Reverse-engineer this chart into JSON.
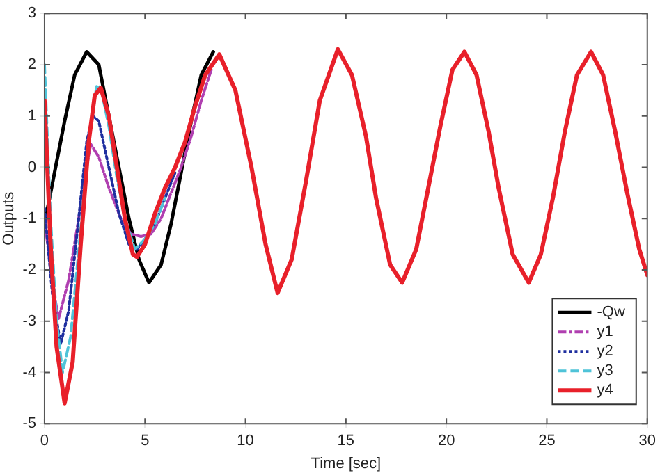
{
  "chart_data": {
    "type": "line",
    "xlabel": "Time [sec]",
    "ylabel": "Outputs",
    "xlim": [
      0,
      30
    ],
    "ylim": [
      -5,
      3
    ],
    "xticks": [
      0,
      5,
      10,
      15,
      20,
      25,
      30
    ],
    "yticks": [
      -5,
      -4,
      -3,
      -2,
      -1,
      0,
      1,
      2,
      3
    ],
    "grid": false,
    "legend": "bottom right",
    "marker": "none",
    "series": [
      {
        "name": "-Qw",
        "color": "#000000",
        "line_style": "solid",
        "x": [
          0,
          0.5,
          1,
          1.5,
          2.1,
          2.7,
          3.2,
          3.7,
          4.2,
          4.7,
          5.2,
          5.8,
          6.3,
          6.8,
          7.3,
          7.8,
          8.4
        ],
        "values": [
          -1.1,
          -0.1,
          0.9,
          1.8,
          2.25,
          2,
          1,
          0,
          -1,
          -1.8,
          -2.25,
          -1.9,
          -1.1,
          -0.1,
          0.9,
          1.8,
          2.25
        ]
      },
      {
        "name": "y1",
        "color": "#b03fb0",
        "line_style": "dashdot",
        "x": [
          0,
          0.4,
          0.7,
          1.2,
          1.7,
          2,
          2.3,
          2.7,
          3.2,
          3.8,
          4.3,
          4.8,
          5.3,
          5.8,
          6.3,
          6.8,
          7.3,
          7.8,
          8.3
        ],
        "values": [
          -1,
          -2.3,
          -2.95,
          -2.2,
          -1,
          -0.2,
          0.45,
          0.2,
          -0.4,
          -1,
          -1.3,
          -1.35,
          -1.3,
          -1,
          -0.5,
          0,
          0.6,
          1.3,
          1.9
        ]
      },
      {
        "name": "y2",
        "color": "#1f2f9f",
        "line_style": "dotted",
        "x": [
          0,
          0.4,
          0.8,
          1.2,
          1.7,
          2.1,
          2.4,
          2.7,
          3.2,
          3.7,
          4.2,
          4.6,
          5,
          5.5,
          6,
          6.5
        ],
        "values": [
          -0.8,
          -2.5,
          -3.45,
          -2.8,
          -1,
          0.5,
          1,
          0.9,
          0,
          -0.9,
          -1.5,
          -1.6,
          -1.4,
          -1.1,
          -0.6,
          -0.1
        ]
      },
      {
        "name": "y3",
        "color": "#4fc3d8",
        "line_style": "dashed",
        "x": [
          0,
          0.3,
          0.6,
          0.9,
          1.3,
          1.8,
          2.2,
          2.6,
          2.8,
          3.2,
          3.6,
          4,
          4.5,
          5,
          5.5,
          6
        ],
        "values": [
          2,
          -1,
          -3,
          -4,
          -3.3,
          -1.2,
          0.5,
          1.6,
          1.55,
          0.8,
          -0.2,
          -1,
          -1.6,
          -1.4,
          -1.1,
          -0.6
        ]
      },
      {
        "name": "y4",
        "color": "#e8202a",
        "line_style": "solid",
        "x": [
          0,
          0.3,
          0.6,
          1,
          1.4,
          1.8,
          2.2,
          2.5,
          2.8,
          3.2,
          3.6,
          4,
          4.4,
          4.6,
          5,
          5.5,
          6,
          6.5,
          7,
          7.5,
          8,
          8.7,
          9.5,
          10.3,
          11,
          11.6,
          12.3,
          13,
          13.7,
          14.6,
          15.3,
          16,
          16.5,
          17.2,
          17.8,
          18.5,
          19.1,
          19.7,
          20.3,
          20.9,
          21.5,
          22.1,
          22.6,
          23.3,
          24.1,
          24.7,
          25.3,
          25.9,
          26.5,
          27.2,
          27.8,
          28.4,
          29,
          29.6,
          30
        ],
        "values": [
          1.3,
          -1.5,
          -3.5,
          -4.6,
          -3.8,
          -1.5,
          0.5,
          1.4,
          1.55,
          1,
          0,
          -1,
          -1.7,
          -1.75,
          -1.5,
          -0.9,
          -0.4,
          0,
          0.5,
          1.2,
          1.8,
          2.2,
          1.5,
          0,
          -1.5,
          -2.45,
          -1.8,
          -0.3,
          1.3,
          2.3,
          1.8,
          0.6,
          -0.6,
          -1.9,
          -2.25,
          -1.6,
          -0.4,
          0.8,
          1.9,
          2.25,
          1.8,
          0.7,
          -0.4,
          -1.7,
          -2.25,
          -1.7,
          -0.6,
          0.7,
          1.8,
          2.25,
          1.8,
          0.7,
          -0.5,
          -1.6,
          -2.1
        ]
      }
    ]
  }
}
